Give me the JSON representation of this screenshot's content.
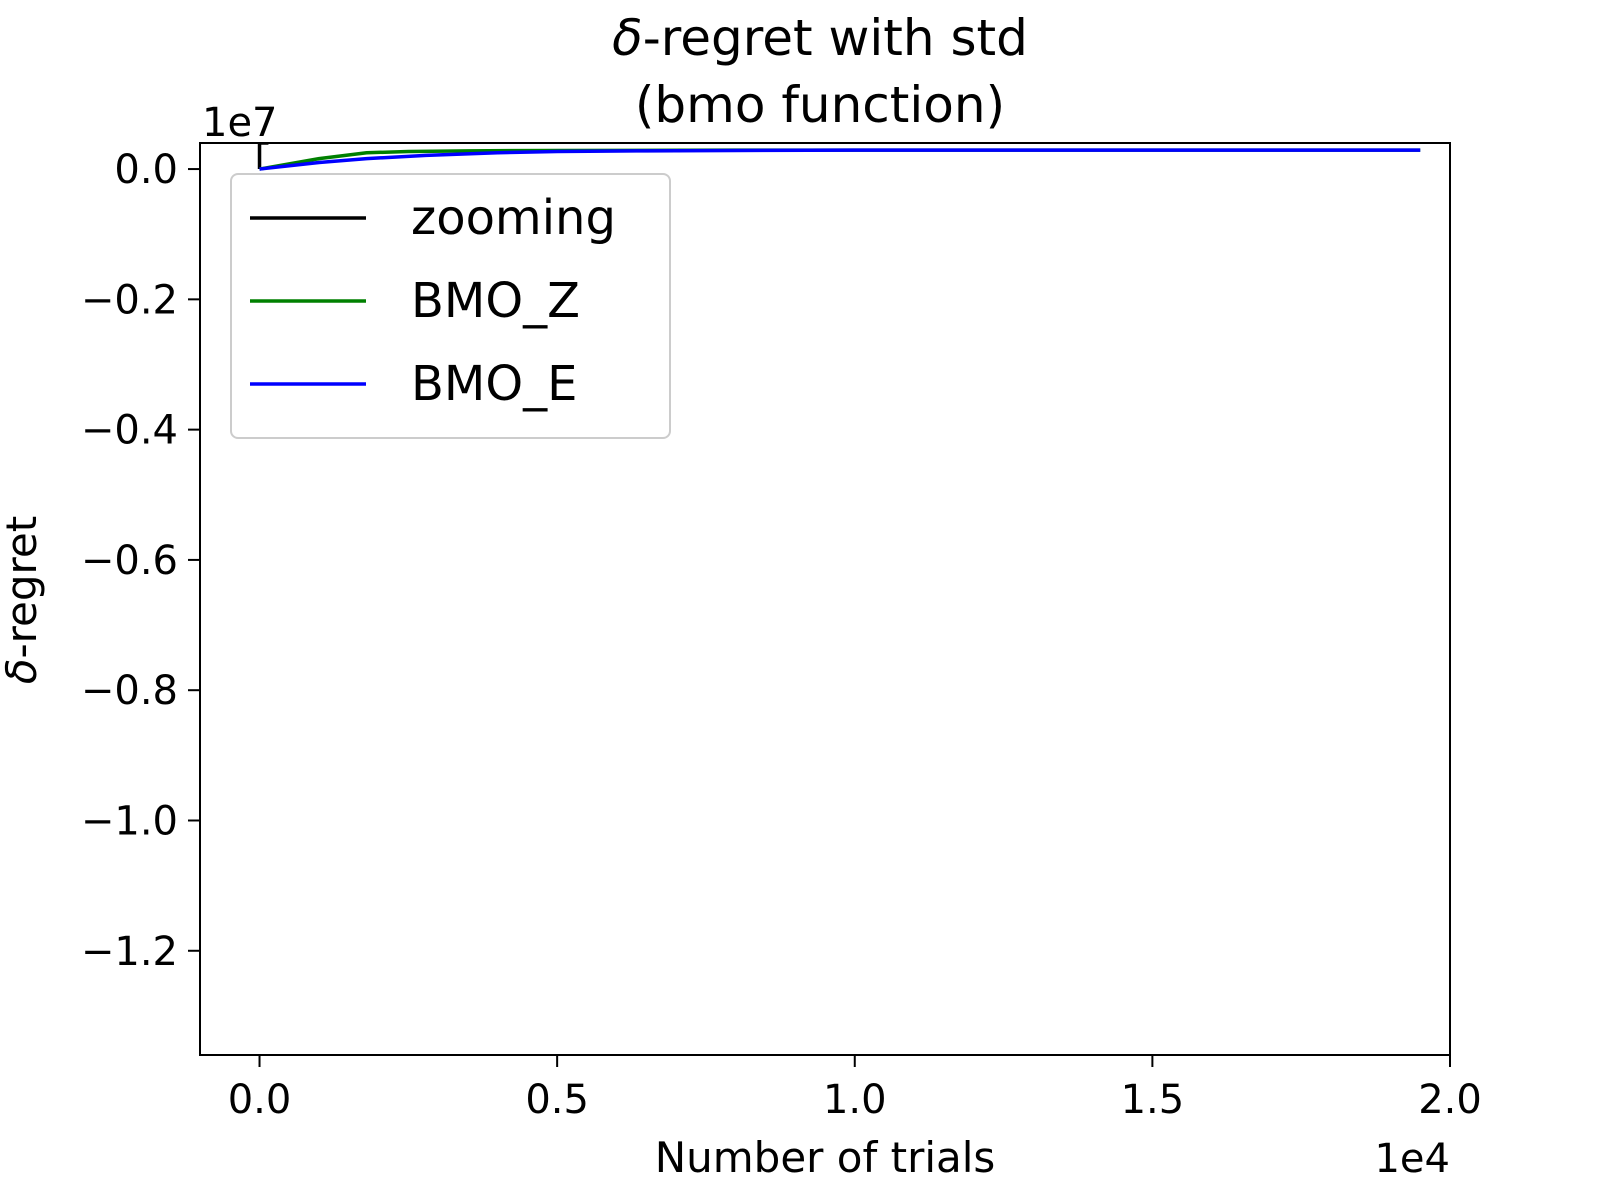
{
  "chart_data": {
    "type": "line",
    "title_prefix": "δ",
    "title_rest": "-regret with std",
    "title_line2": "(bmo function)",
    "xlabel": "Number of trials",
    "ylabel_prefix": "δ",
    "ylabel_rest": "-regret",
    "x_offset_label": "1e4",
    "y_offset_label": "1e7",
    "xlim": [
      -1000,
      20000
    ],
    "ylim": [
      -13600000,
      400000
    ],
    "x_ticks": [
      0,
      5000,
      10000,
      15000,
      20000
    ],
    "x_tick_labels": [
      "0.0",
      "0.5",
      "1.0",
      "1.5",
      "2.0"
    ],
    "y_ticks": [
      0,
      -2000000,
      -4000000,
      -6000000,
      -8000000,
      -10000000,
      -12000000
    ],
    "y_tick_labels": [
      "0.0",
      "−0.2",
      "−0.4",
      "−0.6",
      "−0.8",
      "−1.0",
      "−1.2"
    ],
    "grid": false,
    "legend_position": "upper-left",
    "series": [
      {
        "name": "zooming",
        "color": "#000000",
        "x": [
          0,
          0,
          20,
          60,
          150
        ],
        "y": [
          0,
          400000,
          400000,
          400000,
          400000
        ]
      },
      {
        "name": "BMO_Z",
        "color": "#008000",
        "x": [
          0,
          500,
          1000,
          1800,
          2500,
          3500,
          5000,
          8000,
          12000,
          16000,
          19500
        ],
        "y": [
          0,
          80000,
          160000,
          250000,
          270000,
          280000,
          285000,
          290000,
          290000,
          290000,
          290000
        ]
      },
      {
        "name": "BMO_E",
        "color": "#0000ff",
        "x": [
          0,
          500,
          1000,
          1800,
          2800,
          4000,
          5000,
          6500,
          8000,
          10000,
          13000,
          16000,
          19500
        ],
        "y": [
          0,
          50000,
          100000,
          160000,
          210000,
          250000,
          270000,
          280000,
          285000,
          290000,
          290000,
          290000,
          290000
        ]
      }
    ]
  }
}
